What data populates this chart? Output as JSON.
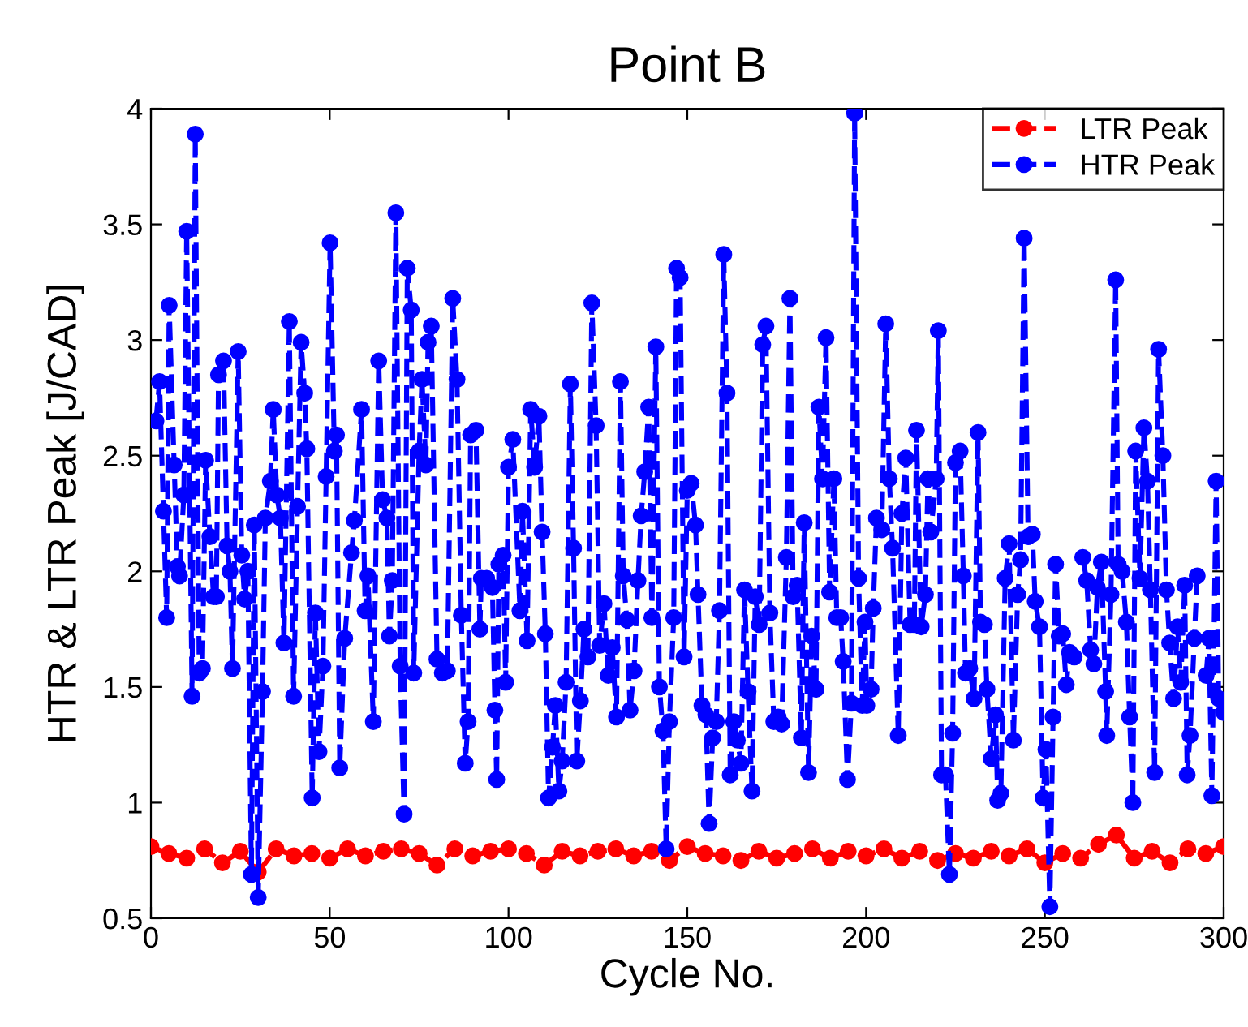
{
  "chart_data": {
    "type": "line",
    "title": "Point B",
    "xlabel": "Cycle No.",
    "ylabel": "HTR & LTR Peak [J/CAD]",
    "xlim": [
      0,
      300
    ],
    "xticks": [
      0,
      50,
      100,
      150,
      200,
      250,
      300
    ],
    "ylim": [
      0.5,
      4
    ],
    "yticks": [
      0.5,
      1,
      1.5,
      2,
      2.5,
      3,
      3.5,
      4
    ],
    "grid": false,
    "legend": "top right",
    "marker": "circle",
    "line_style": "dashed",
    "series": [
      {
        "name": "LTR Peak",
        "color": "#ff0000",
        "x": [
          0,
          5,
          10,
          15,
          20,
          25,
          30,
          35,
          40,
          45,
          50,
          55,
          60,
          65,
          70,
          75,
          80,
          85,
          90,
          95,
          100,
          105,
          110,
          115,
          120,
          125,
          130,
          135,
          140,
          145,
          150,
          155,
          160,
          165,
          170,
          175,
          180,
          185,
          190,
          195,
          200,
          205,
          210,
          215,
          220,
          225,
          230,
          235,
          240,
          245,
          250,
          255,
          260,
          265,
          270,
          275,
          280,
          285,
          290,
          295,
          300
        ],
        "values": [
          0.81,
          0.78,
          0.76,
          0.8,
          0.74,
          0.79,
          0.7,
          0.8,
          0.77,
          0.78,
          0.76,
          0.8,
          0.77,
          0.79,
          0.8,
          0.78,
          0.73,
          0.8,
          0.77,
          0.79,
          0.8,
          0.78,
          0.73,
          0.79,
          0.77,
          0.79,
          0.8,
          0.77,
          0.79,
          0.75,
          0.81,
          0.78,
          0.77,
          0.75,
          0.79,
          0.76,
          0.78,
          0.8,
          0.76,
          0.79,
          0.77,
          0.8,
          0.76,
          0.79,
          0.75,
          0.78,
          0.76,
          0.79,
          0.77,
          0.8,
          0.74,
          0.78,
          0.76,
          0.82,
          0.86,
          0.76,
          0.79,
          0.74,
          0.8,
          0.78,
          0.81
        ]
      },
      {
        "name": "HTR Peak",
        "color": "#0000ff",
        "x": [
          1.4,
          2.4,
          3.5,
          4.4,
          5.1,
          6.5,
          7.4,
          8,
          9.2,
          10,
          11.5,
          12.4,
          13.5,
          14.4,
          15.3,
          16.5,
          17.5,
          18.3,
          18.9,
          20.3,
          21.3,
          22.1,
          22.8,
          24.4,
          25.4,
          26.2,
          27.1,
          28.1,
          28.9,
          30,
          31.2,
          32,
          33.4,
          34.2,
          35.2,
          36.2,
          37.2,
          38.7,
          39.9,
          41,
          42,
          43,
          43.6,
          45.1,
          46,
          47,
          48.1,
          49,
          50.1,
          51.3,
          51.9,
          52.8,
          54.2,
          56.1,
          56.9,
          58.9,
          59.9,
          60.7,
          62.2,
          63.7,
          64.8,
          66,
          66.7,
          67.5,
          68.5,
          69.7,
          70.8,
          71.7,
          72.8,
          73.5,
          75,
          75.8,
          76.9,
          77.5,
          78.4,
          80,
          81.5,
          82.9,
          84.4,
          85.6,
          86.8,
          87.9,
          88.7,
          89.4,
          90.9,
          92,
          92.4,
          93.9,
          95.5,
          96.2,
          96.7,
          97.3,
          98.5,
          99.2,
          100,
          101.2,
          103.2,
          103.9,
          105.2,
          106.2,
          107.3,
          108.5,
          109.4,
          110.3,
          111.2,
          112.3,
          113.1,
          114.1,
          115,
          116.1,
          117.3,
          118.2,
          119.1,
          120.1,
          121.1,
          122.2,
          123.3,
          124.5,
          125.5,
          126.7,
          127.9,
          129,
          130.2,
          131.3,
          132.1,
          133.1,
          134,
          135.1,
          136.2,
          137.1,
          138.1,
          139.2,
          140.1,
          141.2,
          142.2,
          143.2,
          144.1,
          145,
          146.2,
          147,
          148,
          149.1,
          150,
          151.1,
          152.3,
          153,
          154.1,
          155.2,
          156.1,
          157.1,
          158.1,
          159,
          160.2,
          161.1,
          162,
          163,
          164,
          165,
          166,
          167,
          168.1,
          169,
          170.1,
          171.1,
          172,
          173.1,
          174.2,
          175.4,
          176.4,
          177.7,
          178.7,
          179.6,
          180.7,
          181.9,
          182.7,
          183.9,
          184.8,
          186,
          186.8,
          187.8,
          188.8,
          189.8,
          191,
          191.8,
          192.9,
          193.6,
          194.8,
          195.9,
          196.8,
          197.9,
          198.9,
          199.7,
          200.2,
          201.4,
          202,
          202.9,
          204.4,
          205.5,
          206.5,
          207.4,
          209,
          210,
          211.1,
          212.3,
          213.5,
          214.1,
          215.4,
          216.6,
          217.3,
          218.1,
          219.6,
          220.2,
          221.1,
          222.2,
          223.3,
          224.2,
          225,
          226.3,
          227.2,
          227.8,
          229,
          230.2,
          231.3,
          232,
          233.1,
          233.8,
          235,
          236.2,
          236.8,
          237.7,
          238.9,
          240,
          241.2,
          242.4,
          243.2,
          244.2,
          245.3,
          246.5,
          247.3,
          248.5,
          249.5,
          250.3,
          251.4,
          252.3,
          253,
          254,
          255,
          256,
          256.9,
          258.2,
          259.4,
          260.6,
          261.7,
          262.8,
          263.7,
          264.7,
          265.8,
          267,
          267.3,
          268.5,
          269.8,
          270.5,
          271.6,
          272.8,
          273.7,
          274.6,
          275.4,
          276.6,
          277.7,
          278.7,
          279.5,
          280.7,
          281.8,
          283,
          284,
          284.9,
          286,
          287.1,
          288,
          289.1,
          289.8,
          290.6,
          291.8,
          292.6,
          293.8,
          295.1,
          295.9,
          296.7,
          297.9,
          298.6,
          300
        ],
        "values": [
          2.65,
          2.82,
          2.26,
          1.8,
          3.15,
          2.46,
          2.02,
          1.98,
          2.33,
          3.47,
          1.46,
          3.89,
          1.56,
          1.58,
          2.48,
          2.15,
          1.89,
          1.89,
          2.85,
          2.91,
          2.11,
          2.0,
          1.58,
          2.95,
          2.07,
          1.88,
          2.0,
          0.69,
          2.2,
          0.59,
          1.48,
          2.23,
          2.39,
          2.7,
          2.33,
          2.23,
          1.69,
          3.08,
          1.46,
          2.28,
          2.99,
          2.77,
          2.53,
          1.02,
          1.82,
          1.22,
          1.59,
          2.41,
          3.42,
          2.52,
          2.59,
          1.15,
          1.71,
          2.08,
          2.22,
          2.7,
          1.83,
          1.98,
          1.35,
          2.91,
          2.31,
          2.23,
          1.72,
          1.96,
          3.55,
          1.59,
          0.95,
          3.31,
          3.13,
          1.56,
          2.52,
          2.83,
          2.46,
          2.99,
          3.06,
          1.62,
          1.56,
          1.57,
          3.18,
          2.83,
          1.81,
          1.17,
          1.35,
          2.59,
          2.61,
          1.75,
          1.97,
          1.97,
          1.93,
          1.4,
          1.1,
          2.03,
          2.07,
          1.52,
          2.45,
          2.57,
          1.83,
          2.26,
          1.7,
          2.7,
          2.45,
          2.67,
          2.17,
          1.73,
          1.02,
          1.24,
          1.42,
          1.05,
          1.18,
          1.52,
          2.81,
          2.1,
          1.18,
          1.44,
          1.75,
          1.63,
          3.16,
          2.63,
          1.68,
          1.86,
          1.55,
          1.67,
          1.37,
          2.82,
          1.98,
          1.79,
          1.4,
          1.57,
          1.96,
          2.24,
          2.43,
          2.71,
          1.8,
          2.97,
          1.5,
          1.31,
          0.8,
          1.35,
          1.8,
          3.31,
          3.27,
          1.63,
          2.35,
          2.38,
          2.2,
          1.9,
          1.42,
          1.38,
          0.91,
          1.28,
          1.35,
          1.83,
          3.37,
          2.77,
          1.12,
          1.35,
          1.27,
          1.17,
          1.92,
          1.48,
          1.05,
          1.89,
          1.77,
          2.98,
          3.06,
          1.82,
          1.35,
          1.37,
          1.34,
          2.06,
          3.18,
          1.89,
          1.94,
          1.28,
          2.21,
          1.13,
          1.72,
          1.49,
          2.71,
          2.4,
          3.01,
          1.91,
          2.4,
          1.8,
          1.8,
          1.61,
          1.1,
          1.43,
          3.98,
          1.97,
          1.42,
          1.78,
          1.42,
          1.49,
          1.84,
          2.23,
          2.18,
          3.07,
          2.4,
          2.1,
          1.29,
          2.25,
          2.49,
          1.77,
          1.77,
          2.61,
          1.76,
          1.9,
          2.4,
          2.17,
          2.4,
          3.04,
          1.12,
          1.12,
          0.69,
          1.3,
          2.47,
          2.52,
          1.98,
          1.56,
          1.58,
          1.45,
          2.6,
          1.78,
          1.77,
          1.49,
          1.19,
          1.38,
          1.01,
          1.04,
          1.97,
          2.12,
          1.27,
          1.9,
          2.05,
          3.44,
          2.15,
          2.16,
          1.87,
          1.76,
          1.02,
          1.23,
          0.55,
          1.37,
          2.03,
          1.72,
          1.73,
          1.51,
          1.65,
          1.63,
          null,
          2.06,
          1.96,
          1.66,
          1.6,
          1.93,
          2.04,
          1.48,
          1.29,
          1.9,
          3.26,
          2.03,
          2.0,
          1.78,
          1.37,
          1.0,
          2.52,
          1.97,
          2.62,
          2.39,
          1.92,
          1.13,
          2.96,
          2.5,
          1.92,
          1.69,
          1.45,
          1.76,
          1.52,
          1.94,
          1.12,
          1.29,
          1.71,
          1.98,
          null,
          1.55,
          1.71,
          1.03,
          2.39,
          1.45,
          1.39
        ]
      }
    ]
  }
}
